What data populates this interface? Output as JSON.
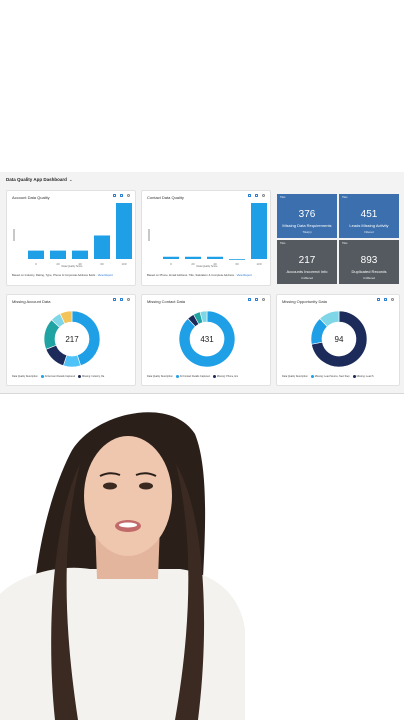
{
  "dashboard": {
    "title": "Data Quality App Dashboard",
    "chevron": "⌄"
  },
  "account_card": {
    "title": "Account Data Quality",
    "xlabel": "Data Quality Score",
    "note": "Based on Industry, Rating, Type, Phone & Corporate Address fields",
    "link": "View Report"
  },
  "contact_card": {
    "title": "Contact Data Quality",
    "xlabel": "Data Quality Score",
    "note": "Based on Phone, Email Address, Title, Salutation & Complete Address",
    "link": "View Report"
  },
  "kpis": [
    {
      "tag": "Tiles",
      "value": "376",
      "label": "Missing Data Requirements",
      "sub": "Tiles(s)",
      "color": "#3b6fad"
    },
    {
      "tag": "Tiles",
      "value": "451",
      "label": "Leads Missing Activity",
      "sub": "Filtered",
      "color": "#3b6fad"
    },
    {
      "tag": "Tiles",
      "value": "217",
      "label": "Accounts Incorrect Info",
      "sub": "Unfiltered",
      "color": "#555a60"
    },
    {
      "tag": "Tiles",
      "value": "893",
      "label": "Duplicated Records",
      "sub": "Unfiltered",
      "color": "#555a60"
    }
  ],
  "missing_account": {
    "title": "Missing Account Data",
    "center": "217",
    "legend_title": "Data Quality Description",
    "legend": [
      "All Account Details Captured",
      "Missing: Industry, Ra"
    ]
  },
  "missing_contact": {
    "title": "Missing Contact Data",
    "center": "431",
    "legend_title": "Data Quality Description",
    "legend": [
      "All Contact Details Captured",
      "Missing: Phone, Em"
    ]
  },
  "missing_opp": {
    "title": "Missing Opportunity Data",
    "center": "94",
    "legend_title": "Data Quality Description",
    "legend": [
      "Missing: Lead Source, Next Step",
      "Missing: Lead S"
    ]
  },
  "chart_data": [
    {
      "type": "bar",
      "title": "Account Data Quality",
      "xlabel": "Data Quality Score",
      "categories": [
        "0",
        "20",
        "40",
        "60",
        "100"
      ],
      "values": [
        15,
        15,
        15,
        42,
        100
      ],
      "ylim": [
        0,
        100
      ]
    },
    {
      "type": "bar",
      "title": "Contact Data Quality",
      "xlabel": "Data Quality Score",
      "categories": [
        "0",
        "20",
        "40",
        "60",
        "100"
      ],
      "values": [
        4,
        4,
        4,
        0,
        100
      ],
      "ylim": [
        0,
        100
      ]
    },
    {
      "type": "pie",
      "title": "Missing Account Data",
      "center_value": "217",
      "values": [
        45,
        10,
        14,
        18,
        6,
        7
      ],
      "colors": [
        "#1e9fe6",
        "#4fc3f7",
        "#1d2b5a",
        "#20a3a3",
        "#7fd6e6",
        "#f2c45a"
      ]
    },
    {
      "type": "pie",
      "title": "Missing Contact Data",
      "center_value": "431",
      "values": [
        88,
        4,
        4,
        4
      ],
      "colors": [
        "#1e9fe6",
        "#1d2b5a",
        "#20a3a3",
        "#7fd6e6"
      ]
    },
    {
      "type": "pie",
      "title": "Missing Opportunity Data",
      "center_value": "94",
      "values": [
        72,
        16,
        12
      ],
      "colors": [
        "#1d2b5a",
        "#1e9fe6",
        "#7fd6e6"
      ]
    }
  ],
  "colors": {
    "bar": "#1e9fe6",
    "kpi_blue": "#3b6fad",
    "kpi_gray": "#555a60"
  },
  "photo": {
    "icon": "person-photo"
  }
}
